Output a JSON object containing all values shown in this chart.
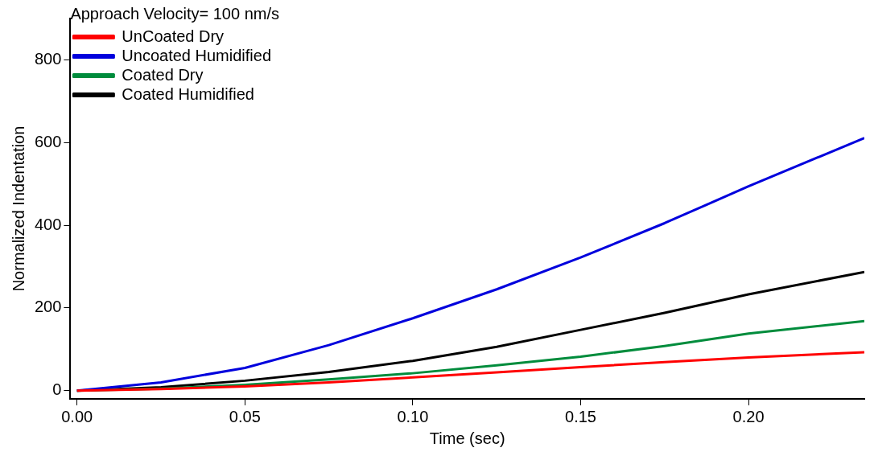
{
  "chart_data": {
    "type": "line",
    "xlabel": "Time (sec)",
    "ylabel": "Normalized Indentation",
    "legend_title": "Approach Velocity= 100 nm/s",
    "legend": "top left",
    "grid": false,
    "marker": "none",
    "line_style": "solid",
    "x": [
      0,
      0.025,
      0.05,
      0.075,
      0.1,
      0.125,
      0.15,
      0.175,
      0.2,
      0.2345
    ],
    "xlim": [
      -0.002,
      0.2345
    ],
    "xticks": [
      {
        "value": 0,
        "label": "0.00"
      },
      0.05,
      {
        "value": 0.1,
        "label": "0.10"
      },
      0.15,
      {
        "value": 0.2,
        "label": "0.20"
      }
    ],
    "ylim": [
      -20,
      900
    ],
    "yticks": [
      0,
      200,
      400,
      600,
      800
    ],
    "series": [
      {
        "name": "UnCoated Dry",
        "color": "#ff0000",
        "values": [
          0,
          4,
          10,
          20,
          32,
          44,
          57,
          69,
          80,
          93
        ]
      },
      {
        "name": "Uncoated Humidified",
        "color": "#0000dd",
        "values": [
          0,
          20,
          55,
          110,
          175,
          245,
          322,
          405,
          494,
          611
        ]
      },
      {
        "name": "Coated Dry",
        "color": "#008c3c",
        "values": [
          0,
          5,
          14,
          27,
          42,
          61,
          82,
          108,
          138,
          168
        ]
      },
      {
        "name": "Coated Humidified",
        "color": "#000000",
        "values": [
          0,
          8,
          24,
          45,
          72,
          106,
          147,
          188,
          233,
          287
        ]
      }
    ]
  }
}
